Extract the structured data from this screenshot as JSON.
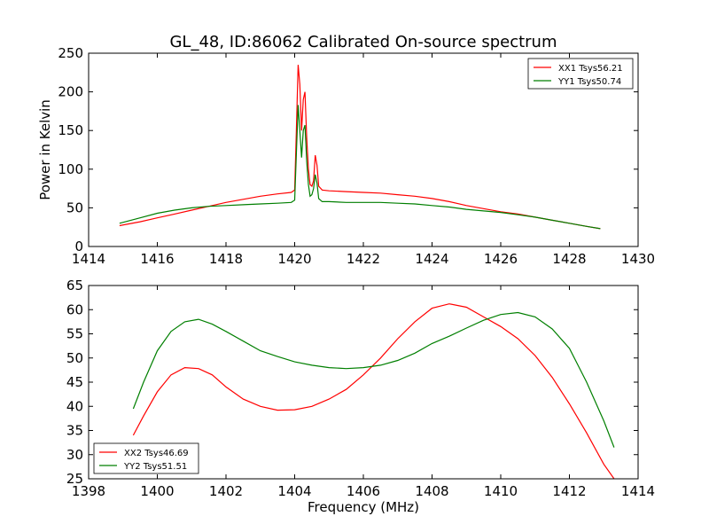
{
  "title": "GL_48, ID:86062 Calibrated On-source spectrum",
  "chart_data": [
    {
      "type": "line",
      "xlabel": "",
      "ylabel": "Power in Kelvin",
      "xlim": [
        1414,
        1430
      ],
      "ylim": [
        0,
        250
      ],
      "xticks": [
        1414,
        1416,
        1418,
        1420,
        1422,
        1424,
        1426,
        1428,
        1430
      ],
      "yticks": [
        0,
        50,
        100,
        150,
        200,
        250
      ],
      "legend_position": "top-right",
      "series": [
        {
          "name": "XX1 Tsys56.21",
          "color": "#ff0000",
          "x": [
            1414.9,
            1415.5,
            1416.0,
            1416.5,
            1417.0,
            1417.5,
            1418.0,
            1418.5,
            1419.0,
            1419.5,
            1419.9,
            1420.0,
            1420.05,
            1420.1,
            1420.15,
            1420.2,
            1420.25,
            1420.3,
            1420.35,
            1420.4,
            1420.45,
            1420.5,
            1420.55,
            1420.6,
            1420.65,
            1420.7,
            1420.8,
            1421.0,
            1421.5,
            1422.0,
            1422.5,
            1423.0,
            1423.5,
            1424.0,
            1424.5,
            1425.0,
            1425.5,
            1426.0,
            1426.5,
            1427.0,
            1427.5,
            1428.0,
            1428.5,
            1428.9
          ],
          "y": [
            27,
            32,
            37,
            42,
            47,
            52,
            57,
            61,
            65,
            68,
            70,
            73,
            150,
            235,
            210,
            150,
            190,
            200,
            140,
            100,
            80,
            78,
            85,
            118,
            105,
            78,
            73,
            72,
            71,
            70,
            69,
            67,
            65,
            62,
            58,
            53,
            49,
            45,
            42,
            38,
            34,
            30,
            26,
            23
          ]
        },
        {
          "name": "YY1 Tsys50.74",
          "color": "#007f00",
          "x": [
            1414.9,
            1415.5,
            1416.0,
            1416.5,
            1417.0,
            1417.5,
            1418.0,
            1418.5,
            1419.0,
            1419.5,
            1419.9,
            1420.0,
            1420.05,
            1420.1,
            1420.15,
            1420.2,
            1420.25,
            1420.3,
            1420.35,
            1420.4,
            1420.45,
            1420.5,
            1420.55,
            1420.6,
            1420.65,
            1420.7,
            1420.8,
            1421.0,
            1421.5,
            1422.0,
            1422.5,
            1423.0,
            1423.5,
            1424.0,
            1424.5,
            1425.0,
            1425.5,
            1426.0,
            1426.5,
            1427.0,
            1427.5,
            1428.0,
            1428.5,
            1428.9
          ],
          "y": [
            30,
            37,
            43,
            47,
            50,
            52,
            53,
            54,
            55,
            56,
            57,
            60,
            120,
            183,
            150,
            115,
            150,
            157,
            110,
            80,
            65,
            67,
            75,
            93,
            82,
            62,
            58,
            58,
            57,
            57,
            57,
            56,
            55,
            53,
            51,
            48,
            46,
            44,
            41,
            38,
            34,
            30,
            26,
            23
          ]
        }
      ]
    },
    {
      "type": "line",
      "xlabel": "Frequency (MHz)",
      "ylabel": "",
      "xlim": [
        1398,
        1414
      ],
      "ylim": [
        25,
        65
      ],
      "xticks": [
        1398,
        1400,
        1402,
        1404,
        1406,
        1408,
        1410,
        1412,
        1414
      ],
      "yticks": [
        25,
        30,
        35,
        40,
        45,
        50,
        55,
        60,
        65
      ],
      "legend_position": "bottom-left",
      "series": [
        {
          "name": "XX2 Tsys46.69",
          "color": "#ff0000",
          "x": [
            1399.3,
            1399.6,
            1400.0,
            1400.4,
            1400.8,
            1401.2,
            1401.6,
            1402.0,
            1402.5,
            1403.0,
            1403.5,
            1404.0,
            1404.5,
            1405.0,
            1405.5,
            1406.0,
            1406.5,
            1407.0,
            1407.5,
            1408.0,
            1408.5,
            1409.0,
            1409.5,
            1410.0,
            1410.5,
            1411.0,
            1411.5,
            1412.0,
            1412.5,
            1413.0,
            1413.3
          ],
          "y": [
            34,
            38,
            43,
            46.5,
            48,
            47.8,
            46.5,
            44,
            41.5,
            40,
            39.2,
            39.3,
            40,
            41.5,
            43.5,
            46.5,
            50,
            54,
            57.5,
            60.3,
            61.2,
            60.5,
            58.5,
            56.5,
            54,
            50.5,
            46,
            40.5,
            34.5,
            28,
            25
          ]
        },
        {
          "name": "YY2 Tsys51.51",
          "color": "#007f00",
          "x": [
            1399.3,
            1399.6,
            1400.0,
            1400.4,
            1400.8,
            1401.2,
            1401.6,
            1402.0,
            1402.5,
            1403.0,
            1403.5,
            1404.0,
            1404.5,
            1405.0,
            1405.5,
            1406.0,
            1406.5,
            1407.0,
            1407.5,
            1408.0,
            1408.5,
            1409.0,
            1409.5,
            1410.0,
            1410.5,
            1411.0,
            1411.5,
            1412.0,
            1412.5,
            1413.0,
            1413.3
          ],
          "y": [
            39.5,
            45,
            51.5,
            55.5,
            57.5,
            58,
            57,
            55.5,
            53.5,
            51.5,
            50.3,
            49.2,
            48.5,
            48,
            47.8,
            48,
            48.5,
            49.5,
            51,
            53,
            54.5,
            56.2,
            57.8,
            59,
            59.4,
            58.5,
            56,
            52,
            45,
            37,
            31.5
          ]
        }
      ]
    }
  ]
}
